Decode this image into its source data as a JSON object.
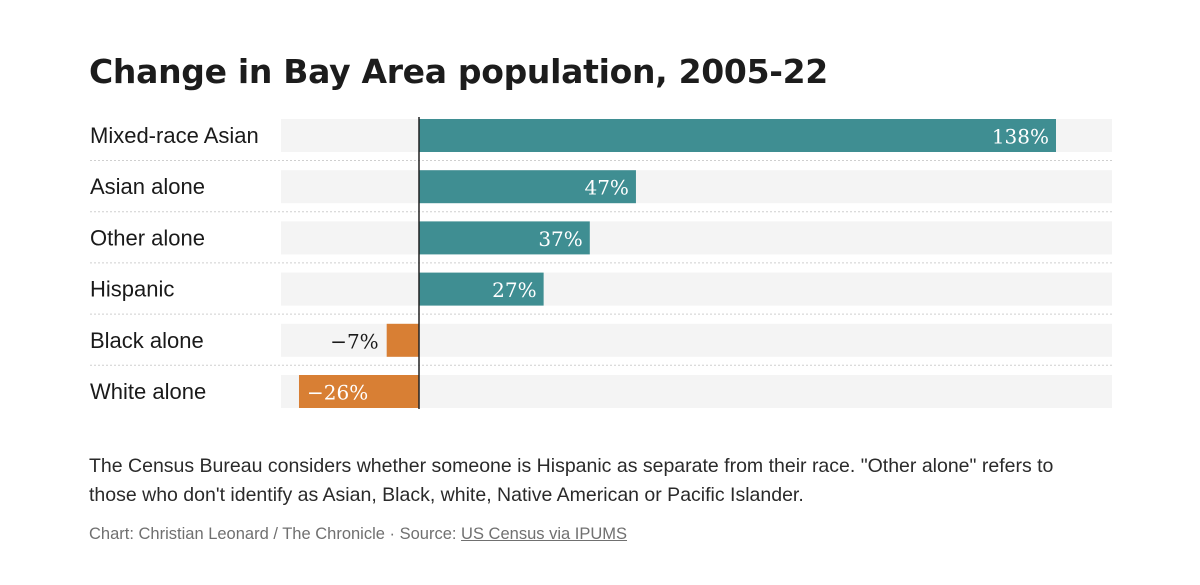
{
  "title": "Change in Bay Area population, 2005-22",
  "note": "The Census Bureau considers whether someone is Hispanic as separate from their race. \"Other alone\" refers to those who don't identify as Asian, Black, white, Native American or Pacific Islander.",
  "credit": {
    "text": "Chart: Christian Leonard / The Chronicle · Source: ",
    "source_link": "US Census via IPUMS"
  },
  "colors": {
    "positive": "#3f8e92",
    "negative": "#d87f34",
    "track": "#f4f4f4",
    "axis": "#222222"
  },
  "chart_data": {
    "type": "bar",
    "orientation": "horizontal",
    "title": "Change in Bay Area population, 2005-22",
    "categories": [
      "Mixed-race Asian",
      "Asian alone",
      "Other alone",
      "Hispanic",
      "Black alone",
      "White alone"
    ],
    "values": [
      138,
      47,
      37,
      27,
      -7,
      -26
    ],
    "value_labels": [
      "138%",
      "47%",
      "37%",
      "27%",
      "−7%",
      "−26%"
    ],
    "unit": "%",
    "xlim": [
      -30,
      150
    ],
    "grid": false,
    "legend": "none"
  }
}
